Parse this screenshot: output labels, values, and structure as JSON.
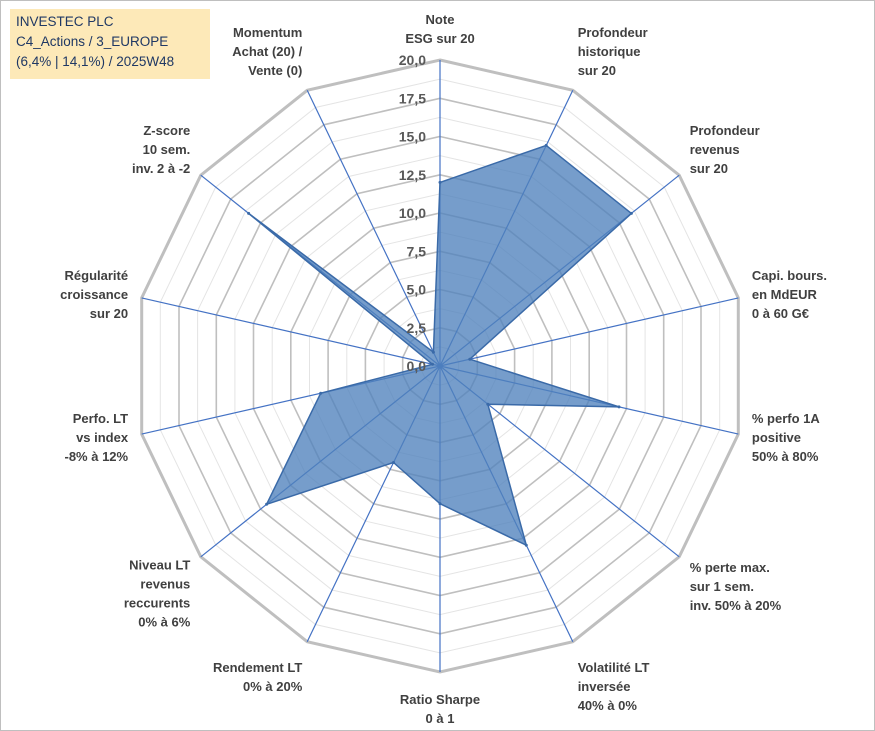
{
  "title": {
    "line1": "INVESTEC PLC",
    "line2": "C4_Actions / 3_EUROPE",
    "line3": "(6,4% | 14,1%) / 2025W48"
  },
  "colors": {
    "fill": "#4f81bd",
    "axis": "#4472c4",
    "grid_major": "#bfbfbf",
    "grid_minor": "#e4e4e4"
  },
  "chart_data": {
    "type": "radar",
    "range": [
      0,
      20
    ],
    "ticks": [
      "0,0",
      "2,5",
      "5,0",
      "7,5",
      "10,0",
      "12,5",
      "15,0",
      "17,5",
      "20,0"
    ],
    "tick_values": [
      0,
      2.5,
      5,
      7.5,
      10,
      12.5,
      15,
      17.5,
      20
    ],
    "axes": [
      {
        "label": [
          "Note",
          "ESG sur 20"
        ],
        "value": 12.0
      },
      {
        "label": [
          "Profondeur",
          "historique",
          "sur 20"
        ],
        "value": 16.0
      },
      {
        "label": [
          "Profondeur",
          "revenus",
          "sur 20"
        ],
        "value": 16.0
      },
      {
        "label": [
          "Capi. bours.",
          "en MdEUR",
          "0 à 60 G€"
        ],
        "value": 2.0
      },
      {
        "label": [
          "% perfo 1A",
          "positive",
          "50% à 80%"
        ],
        "value": 12.0
      },
      {
        "label": [
          "% perte max.",
          "sur 1 sem.",
          "inv. 50% à 20%"
        ],
        "value": 4.0
      },
      {
        "label": [
          "Volatilité LT",
          "inversée",
          "40% à 0%"
        ],
        "value": 13.0
      },
      {
        "label": [
          "Ratio Sharpe",
          "0 à 1"
        ],
        "value": 9.0
      },
      {
        "label": [
          "Rendement LT",
          "0% à 20%"
        ],
        "value": 7.0
      },
      {
        "label": [
          "Niveau LT",
          "revenus",
          "reccurents",
          "0% à 6%"
        ],
        "value": 14.5
      },
      {
        "label": [
          "Perfo. LT",
          "vs index",
          "-8% à 12%"
        ],
        "value": 8.0
      },
      {
        "label": [
          "Régularité",
          "croissance",
          "sur 20"
        ],
        "value": 0.5
      },
      {
        "label": [
          "Z-score",
          "10 sem.",
          "inv. 2 à -2"
        ],
        "value": 16.0
      },
      {
        "label": [
          "Momentum",
          "Achat (20) /",
          "Vente (0)"
        ],
        "value": 1.0
      }
    ]
  }
}
